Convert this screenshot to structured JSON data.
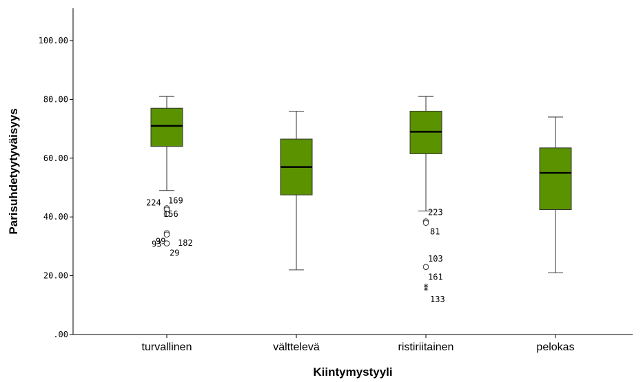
{
  "chart_data": {
    "type": "boxplot",
    "xlabel": "Kiintymystyyli",
    "ylabel": "Parisuhdetyytyväisyys",
    "ylim": [
      0,
      110
    ],
    "yticks": [
      0,
      20,
      40,
      60,
      80,
      100
    ],
    "ytick_labels": [
      ".00",
      "20.00",
      "40.00",
      "60.00",
      "80.00",
      "100.00"
    ],
    "grid": false,
    "box_color": "#5a9200",
    "categories": [
      "turvallinen",
      "välttelevä",
      "ristiriitainen",
      "pelokas"
    ],
    "boxes": [
      {
        "category": "turvallinen",
        "whisker_low": 49,
        "q1": 64,
        "median": 71,
        "q3": 77,
        "whisker_high": 81,
        "outliers": [
          {
            "id": "224",
            "value": 43,
            "symbol": "circle"
          },
          {
            "id": "169",
            "value": 42.5,
            "symbol": "circle"
          },
          {
            "id": "156",
            "value": 41,
            "symbol": "circle"
          },
          {
            "id": "99",
            "value": 34.5,
            "symbol": "circle"
          },
          {
            "id": "182",
            "value": 34,
            "symbol": "circle"
          },
          {
            "id": "93",
            "value": 31,
            "symbol": "circle"
          },
          {
            "id": "29",
            "value": 31,
            "symbol": "circle"
          }
        ]
      },
      {
        "category": "välttelevä",
        "whisker_low": 22,
        "q1": 47.5,
        "median": 57,
        "q3": 66.5,
        "whisker_high": 76,
        "outliers": []
      },
      {
        "category": "ristiriitainen",
        "whisker_low": 42,
        "q1": 61.5,
        "median": 69,
        "q3": 76,
        "whisker_high": 81,
        "outliers": [
          {
            "id": "223",
            "value": 38.5,
            "symbol": "circle"
          },
          {
            "id": "81",
            "value": 38,
            "symbol": "circle"
          },
          {
            "id": "103",
            "value": 23,
            "symbol": "circle"
          },
          {
            "id": "161",
            "value": 16,
            "symbol": "star"
          },
          {
            "id": "133",
            "value": 15,
            "symbol": "star"
          }
        ]
      },
      {
        "category": "pelokas",
        "whisker_low": 21,
        "q1": 42.5,
        "median": 55,
        "q3": 63.5,
        "whisker_high": 74,
        "outliers": []
      }
    ]
  }
}
